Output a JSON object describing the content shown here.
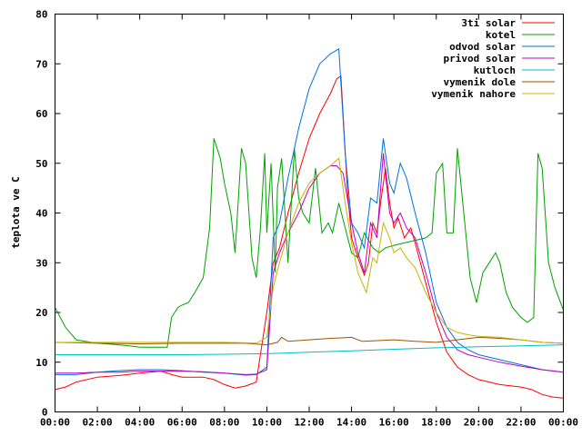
{
  "chart_data": {
    "type": "line",
    "title": "",
    "xlabel": "",
    "ylabel": "teplota ve C",
    "xlim": [
      0,
      24
    ],
    "ylim": [
      0,
      80
    ],
    "x_ticks": [
      "00:00",
      "02:00",
      "04:00",
      "06:00",
      "08:00",
      "10:00",
      "12:00",
      "14:00",
      "16:00",
      "18:00",
      "20:00",
      "22:00",
      "00:00"
    ],
    "y_ticks": [
      0,
      10,
      20,
      30,
      40,
      50,
      60,
      70,
      80
    ],
    "legend_position": "top-right",
    "series": [
      {
        "name": "3ti solar",
        "color": "#ff0000",
        "points": [
          [
            0,
            4.5
          ],
          [
            0.5,
            5
          ],
          [
            1,
            6
          ],
          [
            2,
            7
          ],
          [
            3,
            7.3
          ],
          [
            4,
            7.8
          ],
          [
            5,
            8.2
          ],
          [
            5.5,
            7.5
          ],
          [
            6,
            7
          ],
          [
            7,
            7
          ],
          [
            7.5,
            6.5
          ],
          [
            8,
            5.5
          ],
          [
            8.5,
            4.8
          ],
          [
            9,
            5.2
          ],
          [
            9.5,
            6
          ],
          [
            10,
            20
          ],
          [
            10.3,
            30
          ],
          [
            10.6,
            33
          ],
          [
            11,
            40
          ],
          [
            11.5,
            48
          ],
          [
            12,
            55
          ],
          [
            12.5,
            60
          ],
          [
            13,
            64
          ],
          [
            13.3,
            67
          ],
          [
            13.5,
            67.5
          ],
          [
            13.8,
            45
          ],
          [
            14,
            35
          ],
          [
            14.3,
            31
          ],
          [
            14.6,
            27.5
          ],
          [
            14.8,
            30
          ],
          [
            15,
            38
          ],
          [
            15.2,
            36
          ],
          [
            15.4,
            43
          ],
          [
            15.6,
            49
          ],
          [
            15.8,
            42
          ],
          [
            16,
            37
          ],
          [
            16.2,
            39
          ],
          [
            16.5,
            35
          ],
          [
            16.8,
            37
          ],
          [
            17,
            34
          ],
          [
            17.5,
            26
          ],
          [
            18,
            18
          ],
          [
            18.5,
            12
          ],
          [
            19,
            9
          ],
          [
            19.5,
            7.5
          ],
          [
            20,
            6.5
          ],
          [
            21,
            5.5
          ],
          [
            22,
            5
          ],
          [
            22.5,
            4.5
          ],
          [
            23,
            3.5
          ],
          [
            23.5,
            3
          ],
          [
            24,
            2.8
          ]
        ]
      },
      {
        "name": "kotel",
        "color": "#00a000",
        "points": [
          [
            0,
            21
          ],
          [
            0.5,
            17
          ],
          [
            1,
            14.5
          ],
          [
            2,
            13.8
          ],
          [
            3,
            13.5
          ],
          [
            3.5,
            13.3
          ],
          [
            4,
            13
          ],
          [
            5,
            13
          ],
          [
            5.3,
            13
          ],
          [
            5.5,
            19
          ],
          [
            5.8,
            21
          ],
          [
            6,
            21.5
          ],
          [
            6.3,
            22
          ],
          [
            6.6,
            24
          ],
          [
            7,
            27
          ],
          [
            7.3,
            37
          ],
          [
            7.5,
            55
          ],
          [
            7.8,
            51
          ],
          [
            8,
            46
          ],
          [
            8.3,
            40
          ],
          [
            8.5,
            32
          ],
          [
            8.8,
            53
          ],
          [
            9,
            50
          ],
          [
            9.3,
            31
          ],
          [
            9.5,
            27
          ],
          [
            9.7,
            37
          ],
          [
            9.9,
            52
          ],
          [
            10,
            36
          ],
          [
            10.2,
            50
          ],
          [
            10.4,
            28
          ],
          [
            10.5,
            45
          ],
          [
            10.7,
            51
          ],
          [
            11,
            30
          ],
          [
            11.3,
            53
          ],
          [
            11.5,
            43
          ],
          [
            11.7,
            40
          ],
          [
            12,
            38
          ],
          [
            12.3,
            49
          ],
          [
            12.6,
            36
          ],
          [
            12.9,
            38
          ],
          [
            13.1,
            36
          ],
          [
            13.4,
            42
          ],
          [
            13.7,
            37
          ],
          [
            14,
            32
          ],
          [
            14.3,
            31
          ],
          [
            14.6,
            36
          ],
          [
            15,
            33
          ],
          [
            15.3,
            32
          ],
          [
            15.6,
            33
          ],
          [
            16,
            33.5
          ],
          [
            16.5,
            34
          ],
          [
            17,
            34.5
          ],
          [
            17.5,
            35
          ],
          [
            17.8,
            36
          ],
          [
            18,
            48
          ],
          [
            18.3,
            50
          ],
          [
            18.5,
            36
          ],
          [
            18.8,
            36
          ],
          [
            19,
            53
          ],
          [
            19.3,
            40
          ],
          [
            19.6,
            27
          ],
          [
            19.9,
            22
          ],
          [
            20.2,
            28
          ],
          [
            20.5,
            30
          ],
          [
            20.8,
            32
          ],
          [
            21,
            30
          ],
          [
            21.3,
            24
          ],
          [
            21.6,
            21
          ],
          [
            22,
            19
          ],
          [
            22.3,
            18
          ],
          [
            22.6,
            19
          ],
          [
            22.8,
            52
          ],
          [
            23,
            49
          ],
          [
            23.3,
            30
          ],
          [
            23.6,
            25
          ],
          [
            24,
            20.5
          ]
        ]
      },
      {
        "name": "odvod solar",
        "color": "#0070e0",
        "points": [
          [
            0,
            7.5
          ],
          [
            1,
            7.5
          ],
          [
            2,
            8
          ],
          [
            3,
            8.3
          ],
          [
            4,
            8.5
          ],
          [
            5,
            8.5
          ],
          [
            6,
            8.3
          ],
          [
            7,
            8
          ],
          [
            8,
            7.8
          ],
          [
            9,
            7.4
          ],
          [
            9.5,
            7.5
          ],
          [
            10,
            9
          ],
          [
            10.3,
            35
          ],
          [
            10.6,
            38
          ],
          [
            11,
            47
          ],
          [
            11.5,
            57
          ],
          [
            12,
            65
          ],
          [
            12.5,
            70
          ],
          [
            13,
            72
          ],
          [
            13.4,
            73
          ],
          [
            13.7,
            52
          ],
          [
            14,
            38
          ],
          [
            14.3,
            36
          ],
          [
            14.6,
            33
          ],
          [
            14.9,
            43
          ],
          [
            15.2,
            42
          ],
          [
            15.5,
            55
          ],
          [
            15.8,
            46
          ],
          [
            16,
            44
          ],
          [
            16.3,
            50
          ],
          [
            16.6,
            47
          ],
          [
            17,
            40
          ],
          [
            17.5,
            32
          ],
          [
            18,
            22
          ],
          [
            18.5,
            17
          ],
          [
            19,
            14
          ],
          [
            19.5,
            12.5
          ],
          [
            20,
            11.5
          ],
          [
            21,
            10.5
          ],
          [
            22,
            9.5
          ],
          [
            23,
            8.5
          ],
          [
            24,
            8
          ]
        ]
      },
      {
        "name": "privod solar",
        "color": "#c000c0",
        "points": [
          [
            0,
            7.8
          ],
          [
            1,
            7.8
          ],
          [
            2,
            8
          ],
          [
            3,
            8
          ],
          [
            4,
            8.2
          ],
          [
            5,
            8.2
          ],
          [
            6,
            8.2
          ],
          [
            7,
            8.1
          ],
          [
            8,
            7.8
          ],
          [
            9,
            7.5
          ],
          [
            9.5,
            7.6
          ],
          [
            10,
            8.5
          ],
          [
            10.3,
            28
          ],
          [
            10.6,
            32
          ],
          [
            11,
            36
          ],
          [
            11.5,
            40
          ],
          [
            12,
            45
          ],
          [
            12.5,
            48
          ],
          [
            13,
            49.5
          ],
          [
            13.3,
            49.5
          ],
          [
            13.6,
            48
          ],
          [
            14,
            38
          ],
          [
            14.3,
            32
          ],
          [
            14.6,
            28
          ],
          [
            14.9,
            38
          ],
          [
            15.2,
            35
          ],
          [
            15.5,
            52
          ],
          [
            15.8,
            40
          ],
          [
            16,
            38
          ],
          [
            16.3,
            40
          ],
          [
            16.6,
            37
          ],
          [
            17,
            35
          ],
          [
            17.5,
            28
          ],
          [
            18,
            20
          ],
          [
            18.5,
            15
          ],
          [
            19,
            12.5
          ],
          [
            19.5,
            11.5
          ],
          [
            20,
            11
          ],
          [
            21,
            10
          ],
          [
            22,
            9.2
          ],
          [
            23,
            8.5
          ],
          [
            24,
            8
          ]
        ]
      },
      {
        "name": "kutloch",
        "color": "#00c0c0",
        "points": [
          [
            0,
            11.5
          ],
          [
            2,
            11.5
          ],
          [
            4,
            11.5
          ],
          [
            6,
            11.5
          ],
          [
            8,
            11.6
          ],
          [
            10,
            11.7
          ],
          [
            12,
            12
          ],
          [
            14,
            12.3
          ],
          [
            16,
            12.6
          ],
          [
            18,
            12.9
          ],
          [
            20,
            13.1
          ],
          [
            22,
            13.3
          ],
          [
            24,
            13.5
          ]
        ]
      },
      {
        "name": "vymenik dole",
        "color": "#a05000",
        "points": [
          [
            0,
            14
          ],
          [
            2,
            13.8
          ],
          [
            4,
            13.7
          ],
          [
            6,
            13.8
          ],
          [
            8,
            13.8
          ],
          [
            9,
            13.8
          ],
          [
            10,
            13.5
          ],
          [
            10.5,
            14
          ],
          [
            10.7,
            15
          ],
          [
            11,
            14.2
          ],
          [
            12,
            14.5
          ],
          [
            13,
            14.8
          ],
          [
            14,
            15
          ],
          [
            14.5,
            14.2
          ],
          [
            15,
            14.3
          ],
          [
            16,
            14.5
          ],
          [
            17,
            14.2
          ],
          [
            18,
            14
          ],
          [
            19,
            14.5
          ],
          [
            20,
            15
          ],
          [
            21,
            14.8
          ],
          [
            22,
            14.5
          ],
          [
            23,
            14
          ],
          [
            24,
            13.8
          ]
        ]
      },
      {
        "name": "vymenik nahore",
        "color": "#c8b400",
        "points": [
          [
            0,
            14
          ],
          [
            2,
            14
          ],
          [
            4,
            14
          ],
          [
            6,
            14
          ],
          [
            8,
            14
          ],
          [
            9,
            13.9
          ],
          [
            9.5,
            13.8
          ],
          [
            10,
            15
          ],
          [
            10.3,
            25
          ],
          [
            10.6,
            30
          ],
          [
            11,
            36
          ],
          [
            11.5,
            42
          ],
          [
            12,
            46
          ],
          [
            12.5,
            48
          ],
          [
            13,
            49.5
          ],
          [
            13.4,
            51
          ],
          [
            13.7,
            42
          ],
          [
            14,
            34
          ],
          [
            14.3,
            28
          ],
          [
            14.7,
            24
          ],
          [
            15,
            31
          ],
          [
            15.2,
            30
          ],
          [
            15.5,
            38
          ],
          [
            15.8,
            35
          ],
          [
            16,
            32
          ],
          [
            16.3,
            33
          ],
          [
            16.6,
            31
          ],
          [
            17,
            29
          ],
          [
            17.5,
            24
          ],
          [
            18,
            20
          ],
          [
            18.5,
            17
          ],
          [
            19,
            16
          ],
          [
            19.5,
            15.5
          ],
          [
            20,
            15.2
          ],
          [
            21,
            15
          ],
          [
            22,
            14.5
          ],
          [
            23,
            14
          ],
          [
            24,
            13.8
          ]
        ]
      }
    ]
  }
}
